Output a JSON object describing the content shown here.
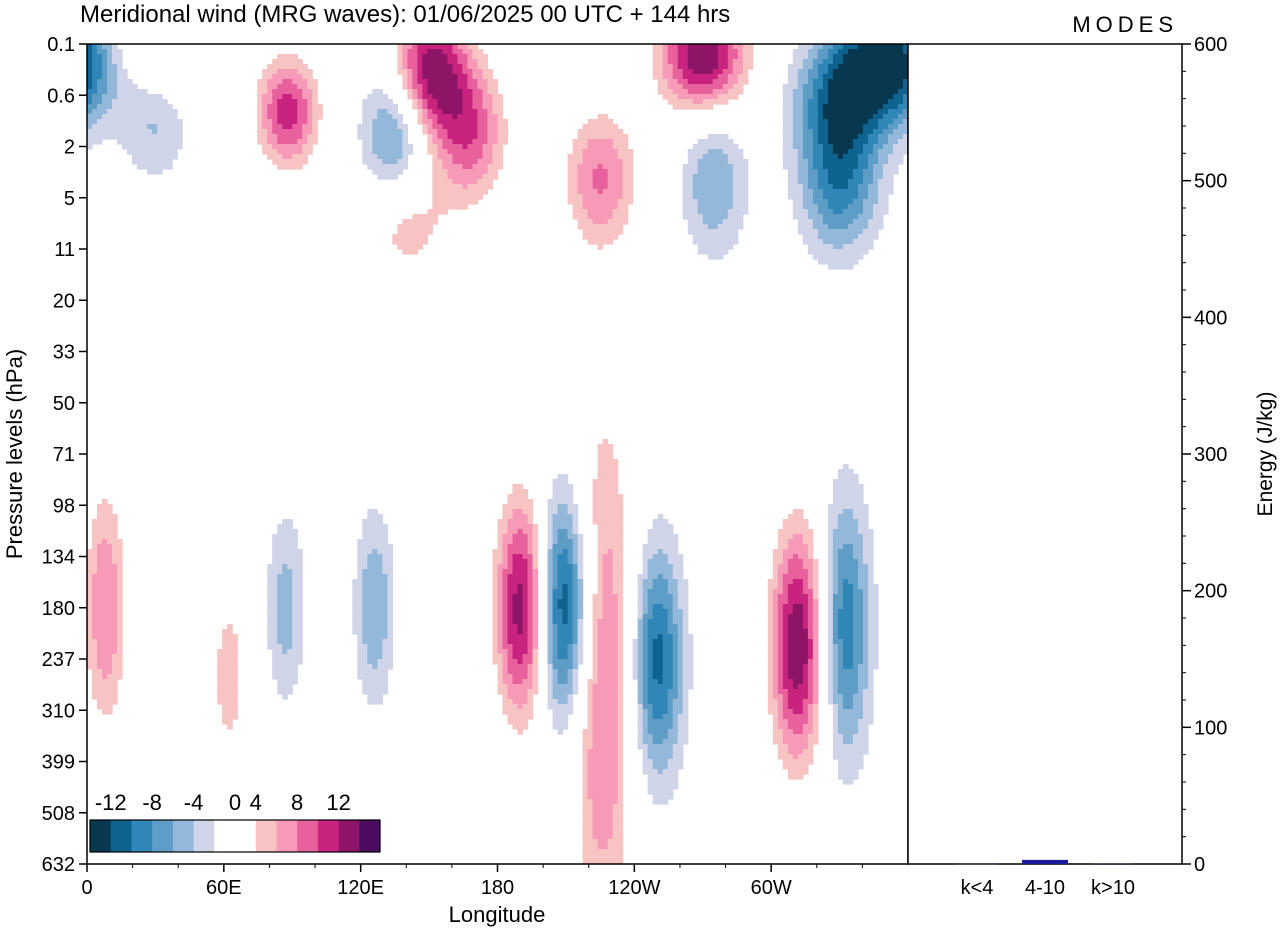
{
  "header": {
    "title": "Meridional wind (MRG waves):  01/06/2025  00 UTC  + 144 hrs",
    "logo": "MODES"
  },
  "chart_data": [
    {
      "type": "heatmap",
      "title": "Meridional wind (MRG waves):  01/06/2025  00 UTC  + 144 hrs",
      "xlabel": "Longitude",
      "ylabel": "Pressure levels (hPa)",
      "x_ticks": [
        "0",
        "60E",
        "120E",
        "180",
        "120W",
        "60W"
      ],
      "x_tick_values": [
        0,
        60,
        120,
        180,
        240,
        300
      ],
      "xlim": [
        0,
        360
      ],
      "y_ticks": [
        "0.1",
        "0.6",
        "2",
        "5",
        "11",
        "20",
        "33",
        "50",
        "71",
        "98",
        "134",
        "180",
        "237",
        "310",
        "399",
        "508",
        "632"
      ],
      "colorbar": {
        "labels": [
          "-12",
          "-8",
          "-4",
          "0",
          "4",
          "8",
          "12"
        ],
        "label_values": [
          -12,
          -8,
          -4,
          0,
          4,
          8,
          12
        ],
        "levels": [
          -14,
          -12,
          -10,
          -8,
          -6,
          -4,
          -2,
          2,
          4,
          6,
          8,
          10,
          12,
          14
        ],
        "colors": [
          "#08384f",
          "#0e6390",
          "#2f86b7",
          "#5d9dc6",
          "#93b8d9",
          "#cfd4e9",
          "#ffffff",
          "#ffffff",
          "#f7c3c3",
          "#f69ab7",
          "#e8619c",
          "#c8237e",
          "#8e1467",
          "#4b0c62"
        ]
      },
      "features": [
        {
          "lon": 192,
          "lev": 180,
          "value": 15,
          "sx": 9,
          "sy": 1.6
        },
        {
          "lon": 208,
          "lev": 180,
          "value": -15,
          "sx": 9,
          "sy": 1.6
        },
        {
          "lon": 226,
          "lev": 260,
          "value": 9,
          "sx": 10,
          "sy": 3.8
        },
        {
          "lon": 250,
          "lev": 240,
          "value": -11,
          "sx": 8,
          "sy": 1.6
        },
        {
          "lon": 312,
          "lev": 220,
          "value": 14,
          "sx": 9,
          "sy": 1.7
        },
        {
          "lon": 332,
          "lev": 200,
          "value": -10,
          "sx": 8,
          "sy": 1.8
        },
        {
          "lon": 8,
          "lev": 180,
          "value": 8,
          "sx": 7,
          "sy": 1.8
        },
        {
          "lon": 62,
          "lev": 260,
          "value": 5,
          "sx": 7,
          "sy": 1.5
        },
        {
          "lon": 87,
          "lev": 180,
          "value": -5,
          "sx": 6,
          "sy": 1.3
        },
        {
          "lon": 126,
          "lev": 180,
          "value": -6,
          "sx": 6,
          "sy": 1.3
        },
        {
          "lon": 30,
          "lev": 0.2,
          "value": 8,
          "sx": 16,
          "sy": 0.9
        },
        {
          "lon": 150,
          "lev": 0.25,
          "value": 13,
          "sx": 12,
          "sy": 0.9
        },
        {
          "lon": 270,
          "lev": 0.15,
          "value": 14,
          "sx": 14,
          "sy": 0.8
        },
        {
          "lon": 352,
          "lev": 0.2,
          "value": -14,
          "sx": 16,
          "sy": 0.8
        },
        {
          "lon": 30,
          "lev": 0.7,
          "value": -8,
          "sx": 12,
          "sy": 0.9
        },
        {
          "lon": 88,
          "lev": 0.9,
          "value": 11,
          "sx": 10,
          "sy": 0.8
        },
        {
          "lon": 135,
          "lev": 1.4,
          "value": -8,
          "sx": 10,
          "sy": 0.9
        },
        {
          "lon": 168,
          "lev": 1.5,
          "value": 9,
          "sx": 12,
          "sy": 1.0
        },
        {
          "lon": 225,
          "lev": 3.5,
          "value": 8,
          "sx": 12,
          "sy": 1.0
        },
        {
          "lon": 275,
          "lev": 3.8,
          "value": -6,
          "sx": 10,
          "sy": 1.0
        },
        {
          "lon": 330,
          "lev": 4.5,
          "value": -8,
          "sx": 12,
          "sy": 0.9
        },
        {
          "lon": 330,
          "lev": 0.8,
          "value": -10,
          "sx": 14,
          "sy": 0.9
        },
        {
          "lon": 140,
          "lev": 8,
          "value": 5,
          "sx": 14,
          "sy": 0.8
        }
      ]
    },
    {
      "type": "bar",
      "categories": [
        "k<4",
        "4-10",
        "k>10"
      ],
      "values": [
        0.5,
        3,
        0.3
      ],
      "ylabel": "Energy (J/kg)",
      "y_ticks": [
        "0",
        "100",
        "200",
        "300",
        "400",
        "500",
        "600"
      ],
      "ylim": [
        0,
        600
      ],
      "bar_color": "#1a1a9a"
    }
  ]
}
